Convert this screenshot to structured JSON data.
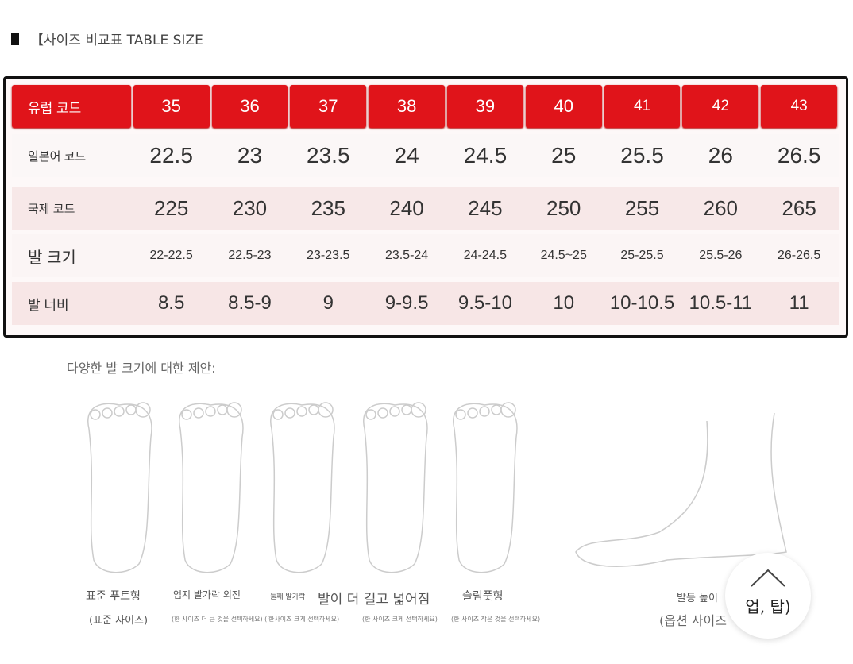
{
  "title": "【사이즈 비교표 TABLE SIZE",
  "table": {
    "rows": [
      {
        "label": "유럽 코드",
        "values": [
          "35",
          "36",
          "37",
          "38",
          "39",
          "40",
          "41",
          "42",
          "43"
        ]
      },
      {
        "label": "일본어 코드",
        "values": [
          "22.5",
          "23",
          "23.5",
          "24",
          "24.5",
          "25",
          "25.5",
          "26",
          "26.5"
        ]
      },
      {
        "label": "국제 코드",
        "values": [
          "225",
          "230",
          "235",
          "240",
          "245",
          "250",
          "255",
          "260",
          "265"
        ]
      },
      {
        "label": "발 크기",
        "values": [
          "22-22.5",
          "22.5-23",
          "23-23.5",
          "23.5-24",
          "24-24.5",
          "24.5~25",
          "25-25.5",
          "25.5-26",
          "26-26.5"
        ]
      },
      {
        "label": "발 너비",
        "values": [
          "8.5",
          "8.5-9",
          "9",
          "9-9.5",
          "9.5-10",
          "10",
          "10-10.5",
          "10.5-11",
          "11"
        ]
      }
    ],
    "header_color": "#e0141a"
  },
  "caption": "다양한 발 크기에 대한 제안:",
  "feet": [
    {
      "name": "표준 푸트형",
      "note": "(표준 사이즈)"
    },
    {
      "name": "엄지 발가락 외전",
      "note": "(한 사이즈 더 큰 것을 선택하세요) ("
    },
    {
      "prefix": "둘째 발가락",
      "name": "발이 더 길고 넓어짐",
      "note": "한사이즈 크게 선택하세요)"
    },
    {
      "name": "",
      "note": "(한 사이즈 크게 선택하세요)"
    },
    {
      "name": "슬림풋형",
      "note": "(한 사이즈 작은 것을 선택하세요)"
    }
  ],
  "instep": {
    "name": "발등 높이",
    "note": "(옵션 사이즈"
  },
  "top_button": {
    "label": "업, 탑)",
    "icon": "chevron-up-icon"
  }
}
